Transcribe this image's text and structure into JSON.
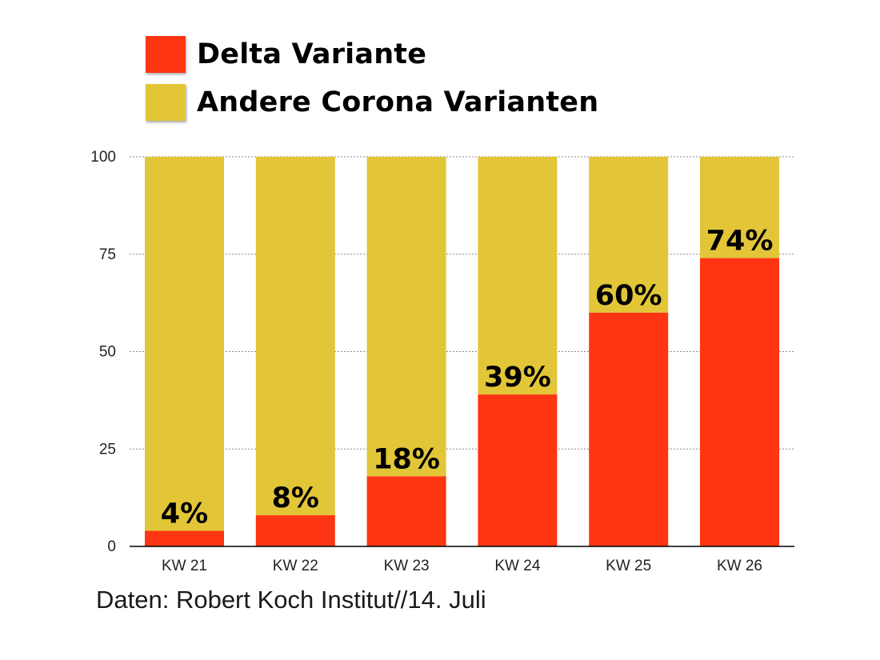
{
  "colors": {
    "delta": "#fe3512",
    "other": "#e2c638",
    "grid": "#8c8c8c",
    "axis": "#000000",
    "text": "#000000"
  },
  "legend": {
    "items": [
      {
        "label": "Delta Variante",
        "color": "#fe3512"
      },
      {
        "label": "Andere Corona Varianten",
        "color": "#e2c638"
      }
    ]
  },
  "source": "Daten: Robert Koch Institut//14. Juli",
  "chart_data": {
    "type": "bar",
    "stacked": true,
    "categories": [
      "KW 21",
      "KW 22",
      "KW 23",
      "KW 24",
      "KW 25",
      "KW 26"
    ],
    "series": [
      {
        "name": "Delta Variante",
        "values": [
          4,
          8,
          18,
          39,
          60,
          74
        ]
      },
      {
        "name": "Andere Corona Varianten",
        "values": [
          96,
          92,
          82,
          61,
          40,
          26
        ]
      }
    ],
    "data_labels": [
      "4%",
      "8%",
      "18%",
      "39%",
      "60%",
      "74%"
    ],
    "ylim": [
      0,
      100
    ],
    "yticks": [
      "0",
      "25",
      "50",
      "75",
      "100"
    ],
    "grid": true,
    "legend_position": "top-left"
  }
}
